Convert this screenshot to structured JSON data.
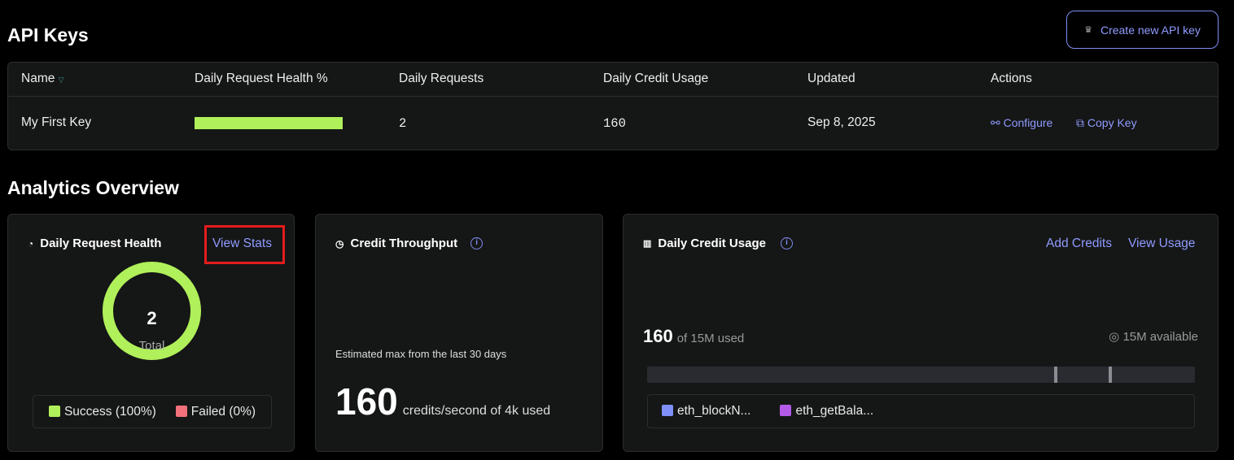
{
  "header": {
    "title": "API Keys",
    "create_button": "Create new API key"
  },
  "table": {
    "columns": [
      "Name",
      "Daily Request Health %",
      "Daily Requests",
      "Daily Credit Usage",
      "Updated",
      "Actions"
    ],
    "rows": [
      {
        "name": "My First Key",
        "health_percent": 100,
        "daily_requests": "2",
        "daily_credit_usage": "160",
        "updated": "Sep 8, 2025",
        "configure": "Configure",
        "copy_key": "Copy Key"
      }
    ]
  },
  "analytics": {
    "title": "Analytics Overview",
    "health": {
      "title": "Daily Request Health",
      "view_stats": "View Stats",
      "total_value": "2",
      "total_label": "Total",
      "success": "Success (100%)",
      "failed": "Failed (0%)",
      "success_color": "#b0f05a",
      "failed_color": "#f2707a"
    },
    "throughput": {
      "title": "Credit Throughput",
      "caption": "Estimated max from the last 30 days",
      "value": "160",
      "unit": "credits/second of 4k used"
    },
    "usage": {
      "title": "Daily Credit Usage",
      "add_credits": "Add Credits",
      "view_usage": "View Usage",
      "used": "160",
      "of_label": "of 15M used",
      "available": "15M available",
      "legend": [
        {
          "label": "eth_blockN...",
          "color": "#7f90f8"
        },
        {
          "label": "eth_getBala...",
          "color": "#b35be8"
        }
      ]
    }
  },
  "colors": {
    "accent": "#8f9bff",
    "highlight": "#e51c1c"
  }
}
